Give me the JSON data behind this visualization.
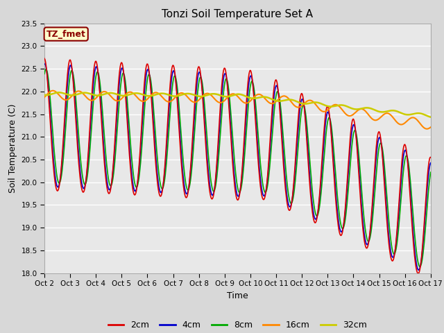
{
  "title": "Tonzi Soil Temperature Set A",
  "xlabel": "Time",
  "ylabel": "Soil Temperature (C)",
  "ylim": [
    18.0,
    23.5
  ],
  "yticks": [
    18.0,
    18.5,
    19.0,
    19.5,
    20.0,
    20.5,
    21.0,
    21.5,
    22.0,
    22.5,
    23.0,
    23.5
  ],
  "xtick_labels": [
    "Oct 2",
    "Oct 3",
    "Oct 4",
    "Oct 5",
    "Oct 6",
    "Oct 7",
    "Oct 8",
    "Oct 9",
    "Oct 10",
    "Oct 11",
    "Oct 12",
    "Oct 13",
    "Oct 14",
    "Oct 15",
    "Oct 16",
    "Oct 17"
  ],
  "label_box_text": "TZ_fmet",
  "label_box_bg": "#ffffcc",
  "label_box_edge": "#8b0000",
  "colors": {
    "2cm": "#dd0000",
    "4cm": "#0000cc",
    "8cm": "#00aa00",
    "16cm": "#ff8800",
    "32cm": "#cccc00"
  },
  "bg_color": "#d8d8d8",
  "plot_bg": "#e8e8e8",
  "n_points": 720,
  "n_days": 15,
  "figsize": [
    6.4,
    4.8
  ],
  "dpi": 100
}
